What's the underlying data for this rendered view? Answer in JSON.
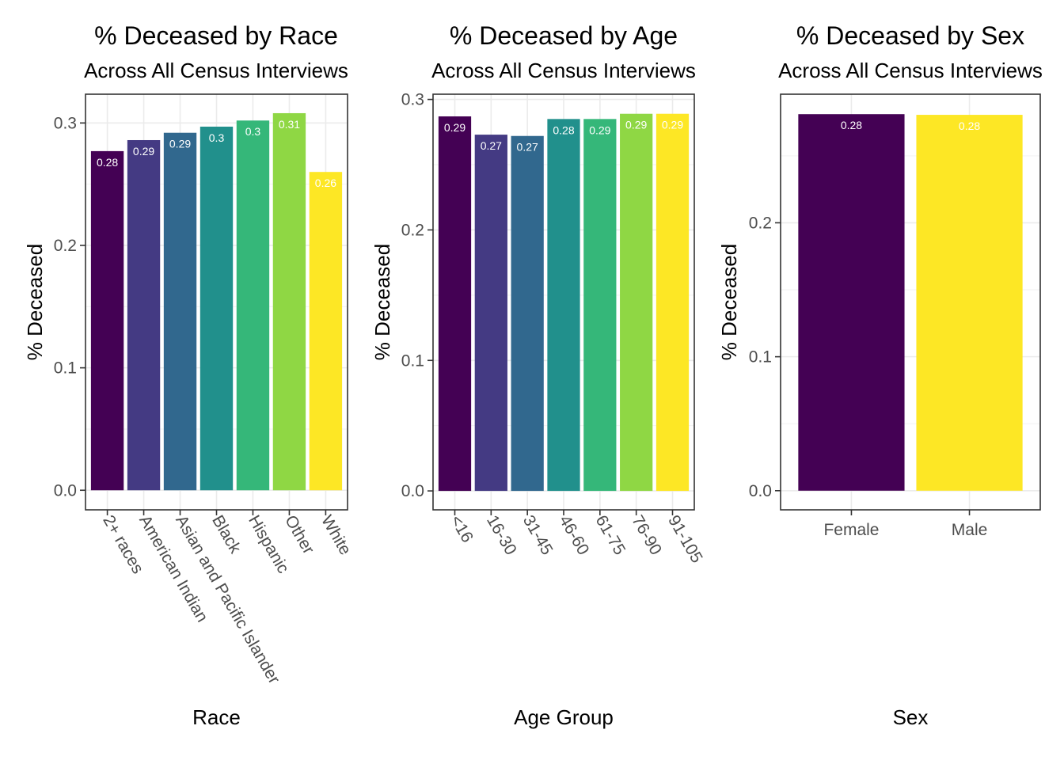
{
  "chart_data": [
    {
      "type": "bar",
      "title": "% Deceased by Race",
      "subtitle": "Across All Census Interviews",
      "xlabel": "Race",
      "ylabel": "% Deceased",
      "categories": [
        "2+ races",
        "American Indian",
        "Asian and Pacific Islander",
        "Black",
        "Hispanic",
        "Other",
        "White"
      ],
      "values": [
        0.277,
        0.286,
        0.292,
        0.297,
        0.302,
        0.308,
        0.26
      ],
      "labels": [
        "0.28",
        "0.29",
        "0.29",
        "0.3",
        "0.3",
        "0.31",
        "0.26"
      ],
      "colors": [
        "#440154",
        "#443A83",
        "#31688E",
        "#21908C",
        "#35B779",
        "#8FD744",
        "#FDE725"
      ],
      "yticks": [
        0.0,
        0.1,
        0.2,
        0.3
      ],
      "ytick_labels": [
        "0.0",
        "0.1",
        "0.2",
        "0.3"
      ],
      "ylim": [
        -0.016,
        0.3235
      ],
      "grid": true
    },
    {
      "type": "bar",
      "title": "% Deceased by Age",
      "subtitle": "Across All Census Interviews",
      "xlabel": "Age Group",
      "ylabel": "% Deceased",
      "categories": [
        "<16",
        "16-30",
        "31-45",
        "46-60",
        "61-75",
        "76-90",
        "91-105"
      ],
      "values": [
        0.287,
        0.273,
        0.272,
        0.285,
        0.285,
        0.289,
        0.289
      ],
      "labels": [
        "0.29",
        "0.27",
        "0.27",
        "0.28",
        "0.29",
        "0.29",
        "0.29"
      ],
      "colors": [
        "#440154",
        "#443A83",
        "#31688E",
        "#21908C",
        "#35B779",
        "#8FD744",
        "#FDE725"
      ],
      "yticks": [
        0.0,
        0.1,
        0.2,
        0.3
      ],
      "ytick_labels": [
        "0.0",
        "0.1",
        "0.2",
        "0.3"
      ],
      "ylim": [
        -0.0145,
        0.304
      ],
      "grid": true
    },
    {
      "type": "bar",
      "title": "% Deceased by Sex",
      "subtitle": "Across All Census Interviews",
      "xlabel": "Sex",
      "ylabel": "% Deceased",
      "categories": [
        "Female",
        "Male"
      ],
      "values": [
        0.2811,
        0.2806
      ],
      "labels": [
        "0.28",
        "0.28"
      ],
      "colors": [
        "#440154",
        "#FDE725"
      ],
      "yticks": [
        0.0,
        0.1,
        0.2
      ],
      "ytick_labels": [
        "0.0",
        "0.1",
        "0.2"
      ],
      "ylim": [
        -0.0143,
        0.296
      ],
      "grid": true
    }
  ]
}
